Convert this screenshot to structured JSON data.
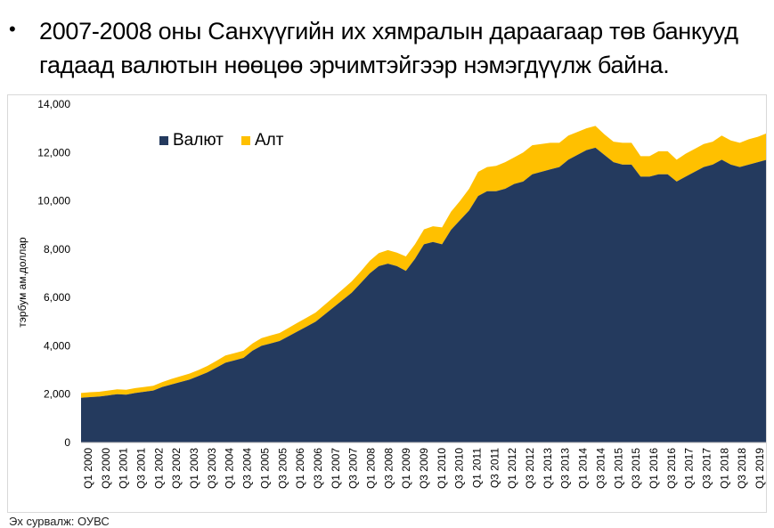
{
  "headline": {
    "bullet": "•",
    "line1": "2007-2008 оны Санхүүгийн их хямралын дараагаар төв банкууд",
    "line2": "гадаад валютын нөөцөө эрчимтэйгээр нэмэгдүүлж байна."
  },
  "source": "Эх сурвалж: ОУВС",
  "colors": {
    "valyut": "#243A5E",
    "alt": "#FFC000"
  },
  "chart_data": {
    "type": "area",
    "stacked": true,
    "title": "",
    "xlabel": "",
    "ylabel": "тэрбум ам.доллар",
    "ylim": [
      0,
      14000
    ],
    "yticks": [
      0,
      2000,
      4000,
      6000,
      8000,
      10000,
      12000,
      14000
    ],
    "ytick_labels": [
      "0",
      "2,000",
      "4,000",
      "6,000",
      "8,000",
      "10,000",
      "12,000",
      "14,000"
    ],
    "legend_position": "top-left",
    "grid": false,
    "x_start": "Q1 2000",
    "x_end": "Q1 2019",
    "x_labels": [
      "Q1 2000",
      "Q3 2000",
      "Q1 2001",
      "Q3 2001",
      "Q1 2002",
      "Q3 2002",
      "Q1 2003",
      "Q3 2003",
      "Q1 2004",
      "Q3 2004",
      "Q1 2005",
      "Q3 2005",
      "Q1 2006",
      "Q3 2006",
      "Q1 2007",
      "Q3 2007",
      "Q1 2008",
      "Q3 2008",
      "Q1 2009",
      "Q3 2009",
      "Q1 2010",
      "Q3 2010",
      "Q1 2011",
      "Q3 2011",
      "Q1 2012",
      "Q3 2012",
      "Q1 2013",
      "Q3 2013",
      "Q1 2014",
      "Q3 2014",
      "Q1 2015",
      "Q3 2015",
      "Q1 2016",
      "Q3 2016",
      "Q1 2017",
      "Q3 2017",
      "Q1 2018",
      "Q3 2018",
      "Q1 2019"
    ],
    "series": [
      {
        "name": "Валют",
        "color": "#243A5E",
        "values": [
          1850,
          1880,
          1900,
          1950,
          2000,
          1980,
          2050,
          2100,
          2150,
          2300,
          2400,
          2500,
          2600,
          2750,
          2900,
          3100,
          3300,
          3400,
          3500,
          3800,
          4000,
          4100,
          4200,
          4400,
          4600,
          4800,
          5000,
          5300,
          5600,
          5900,
          6200,
          6600,
          7000,
          7300,
          7400,
          7300,
          7100,
          7600,
          8200,
          8300,
          8200,
          8800,
          9200,
          9600,
          10200,
          10400,
          10400,
          10500,
          10700,
          10800,
          11100,
          11200,
          11300,
          11400,
          11700,
          11900,
          12100,
          12200,
          11900,
          11600,
          11500,
          11500,
          11000,
          11000,
          11100,
          11100,
          10800,
          11000,
          11200,
          11400,
          11500,
          11700,
          11500,
          11400,
          11500,
          11600,
          11700
        ]
      },
      {
        "name": "Алт",
        "color": "#FFC000",
        "values": [
          200,
          200,
          200,
          200,
          200,
          200,
          200,
          200,
          200,
          200,
          230,
          240,
          250,
          250,
          270,
          280,
          300,
          300,
          300,
          300,
          320,
          330,
          330,
          340,
          360,
          370,
          380,
          400,
          420,
          440,
          470,
          480,
          520,
          540,
          560,
          560,
          600,
          600,
          620,
          650,
          700,
          750,
          800,
          900,
          1000,
          1000,
          1050,
          1100,
          1100,
          1200,
          1200,
          1150,
          1100,
          1000,
          1000,
          950,
          900,
          900,
          850,
          850,
          900,
          900,
          850,
          850,
          950,
          950,
          900,
          950,
          950,
          950,
          950,
          1000,
          1000,
          1000,
          1050,
          1050,
          1100
        ]
      }
    ]
  }
}
